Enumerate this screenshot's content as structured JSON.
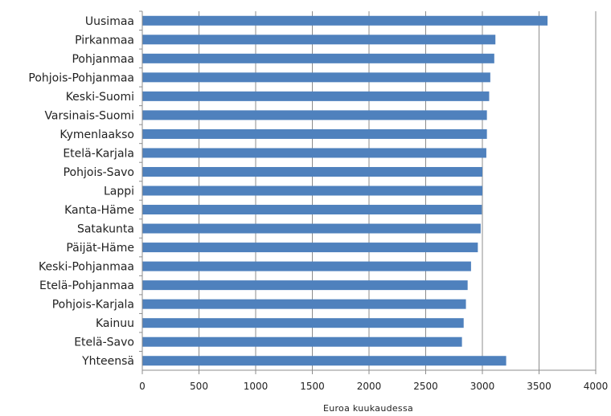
{
  "chart_data": {
    "type": "bar",
    "orientation": "horizontal",
    "categories": [
      "Uusimaa",
      "Pirkanmaa",
      "Pohjanmaa",
      "Pohjois-Pohjanmaa",
      "Keski-Suomi",
      "Varsinais-Suomi",
      "Kymenlaakso",
      "Etelä-Karjala",
      "Pohjois-Savo",
      "Lappi",
      "Kanta-Häme",
      "Satakunta",
      "Päijät-Häme",
      "Keski-Pohjanmaa",
      "Etelä-Pohjanmaa",
      "Pohjois-Karjala",
      "Kainuu",
      "Etelä-Savo",
      "Yhteensä"
    ],
    "values": [
      3575,
      3115,
      3105,
      3070,
      3060,
      3040,
      3040,
      3035,
      3000,
      3000,
      2995,
      2985,
      2960,
      2900,
      2870,
      2855,
      2835,
      2820,
      3210
    ],
    "xlabel": "Euroa kuukaudessa",
    "xlim": [
      0,
      4000
    ],
    "xticks": [
      "0",
      "500",
      "1000",
      "1500",
      "2000",
      "2500",
      "3000",
      "3500",
      "4000"
    ],
    "grid": "vertical",
    "bar_color": "#4f81bd"
  }
}
